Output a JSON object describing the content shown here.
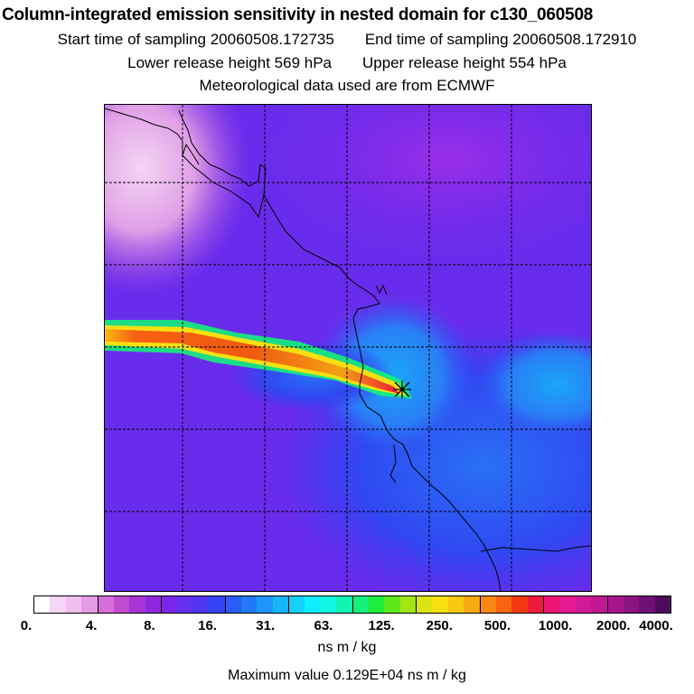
{
  "header": {
    "title": "Column-integrated emission sensitivity in nested domain for c130_060508",
    "start_label": "Start time of sampling 20060508.172735",
    "end_label": "End time of sampling 20060508.172910",
    "lower_label": "Lower release height  569 hPa",
    "upper_label": "Upper release height  554 hPa",
    "met_label": "Meteorological data used are from ECMWF"
  },
  "map": {
    "release_marker": "release-point-marker",
    "icon": "cross-star-icon"
  },
  "colorbar": {
    "ticks": [
      "0.",
      "4.",
      "8.",
      "16.",
      "31.",
      "63.",
      "125.",
      "250.",
      "500.",
      "1000.",
      "2000.",
      "4000."
    ],
    "colors": [
      "#ffffff",
      "#f6d6f6",
      "#f0bff0",
      "#e59be5",
      "#d66ed9",
      "#c24bd2",
      "#a734d4",
      "#8f27e0",
      "#7a26ea",
      "#6330ee",
      "#4e38f2",
      "#3344f5",
      "#2a5cf7",
      "#2378f8",
      "#1e96f9",
      "#18b4fa",
      "#12d2fb",
      "#0eeefc",
      "#10f7e0",
      "#12f5b0",
      "#14f07a",
      "#20ec3a",
      "#5de71a",
      "#a2e414",
      "#dbe312",
      "#f6e012",
      "#f7c912",
      "#f7aa12",
      "#f78812",
      "#f76412",
      "#f33a12",
      "#f01a3a",
      "#ee1472",
      "#e41a90",
      "#d21a96",
      "#be1892",
      "#a8168c",
      "#8c1482",
      "#6e1074",
      "#4d0b5c"
    ],
    "units": "ns m / kg"
  },
  "footer": {
    "max_value": "Maximum value  0.129E+04 ns m / kg"
  }
}
